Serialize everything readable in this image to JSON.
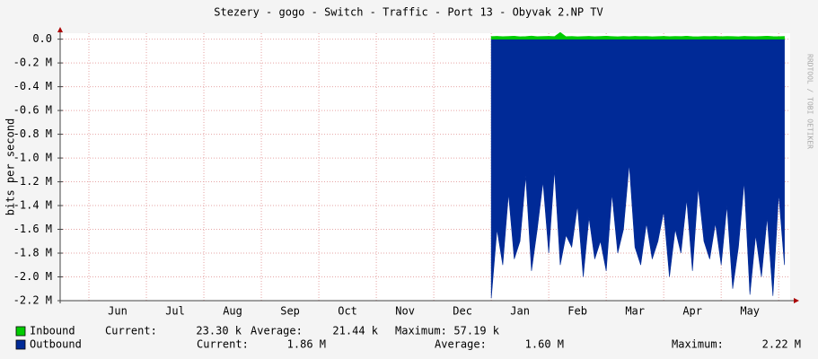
{
  "chart_data": {
    "type": "area",
    "title": "Stezery - gogo - Switch - Traffic - Port 13 - Obyvak 2.NP TV",
    "y_label": "bits per second",
    "watermark": "RRDTOOL / TOBI OETIKER",
    "categories": [
      "Jun",
      "Jul",
      "Aug",
      "Sep",
      "Oct",
      "Nov",
      "Dec",
      "Jan",
      "Feb",
      "Mar",
      "Apr",
      "May"
    ],
    "xlim": [
      -0.5,
      12.2
    ],
    "ylim": [
      -2200000,
      50000
    ],
    "yticks": [
      {
        "value": 0,
        "label": "0.0"
      },
      {
        "value": -200000,
        "label": "-0.2 M"
      },
      {
        "value": -400000,
        "label": "-0.4 M"
      },
      {
        "value": -600000,
        "label": "-0.6 M"
      },
      {
        "value": -800000,
        "label": "-0.8 M"
      },
      {
        "value": -1000000,
        "label": "-1.0 M"
      },
      {
        "value": -1200000,
        "label": "-1.2 M"
      },
      {
        "value": -1400000,
        "label": "-1.4 M"
      },
      {
        "value": -1600000,
        "label": "-1.6 M"
      },
      {
        "value": -1800000,
        "label": "-1.8 M"
      },
      {
        "value": -2000000,
        "label": "-2.0 M"
      },
      {
        "value": -2200000,
        "label": "-2.2 M"
      }
    ],
    "grid": true,
    "stat_labels": [
      "Current:",
      "Average:",
      "Maximum:"
    ],
    "x": [
      7.0,
      7.1,
      7.2,
      7.3,
      7.4,
      7.5,
      7.6,
      7.7,
      7.8,
      7.9,
      8.0,
      8.1,
      8.2,
      8.3,
      8.4,
      8.5,
      8.6,
      8.7,
      8.8,
      8.9,
      9.0,
      9.1,
      9.2,
      9.3,
      9.4,
      9.5,
      9.6,
      9.7,
      9.8,
      9.9,
      10.0,
      10.1,
      10.2,
      10.3,
      10.4,
      10.5,
      10.6,
      10.7,
      10.8,
      10.9,
      11.0,
      11.1,
      11.2,
      11.3,
      11.4,
      11.5,
      11.6,
      11.7,
      11.8,
      11.9,
      12.0,
      12.1
    ],
    "series": [
      {
        "name": "Inbound",
        "color": "#00cc00",
        "stats": [
          "23.30 k",
          "21.44 k",
          "57.19 k"
        ],
        "values": [
          22000,
          24000,
          21000,
          23000,
          25000,
          20000,
          22000,
          26000,
          21000,
          23000,
          24000,
          22000,
          57000,
          21000,
          23000,
          20000,
          22000,
          24000,
          21000,
          23000,
          25000,
          22000,
          20000,
          23000,
          21000,
          24000,
          22000,
          23000,
          20000,
          22000,
          24000,
          21000,
          23000,
          22000,
          25000,
          21000,
          20000,
          23000,
          22000,
          24000,
          21000,
          23000,
          22000,
          20000,
          24000,
          22000,
          21000,
          23000,
          25000,
          22000,
          21000,
          23000
        ]
      },
      {
        "name": "Outbound",
        "color": "#002a97",
        "stats": [
          "1.86 M",
          "1.60 M",
          "2.22 M"
        ],
        "values": [
          -2180000,
          -1600000,
          -1900000,
          -1300000,
          -1850000,
          -1700000,
          -1150000,
          -1950000,
          -1600000,
          -1200000,
          -1800000,
          -1100000,
          -1900000,
          -1650000,
          -1750000,
          -1400000,
          -2000000,
          -1500000,
          -1850000,
          -1700000,
          -1950000,
          -1300000,
          -1800000,
          -1600000,
          -1050000,
          -1750000,
          -1900000,
          -1550000,
          -1850000,
          -1700000,
          -1450000,
          -2000000,
          -1600000,
          -1800000,
          -1350000,
          -1950000,
          -1250000,
          -1700000,
          -1850000,
          -1550000,
          -1900000,
          -1400000,
          -2100000,
          -1750000,
          -1200000,
          -2150000,
          -1650000,
          -2000000,
          -1500000,
          -2160000,
          -1300000,
          -1900000
        ]
      }
    ]
  }
}
